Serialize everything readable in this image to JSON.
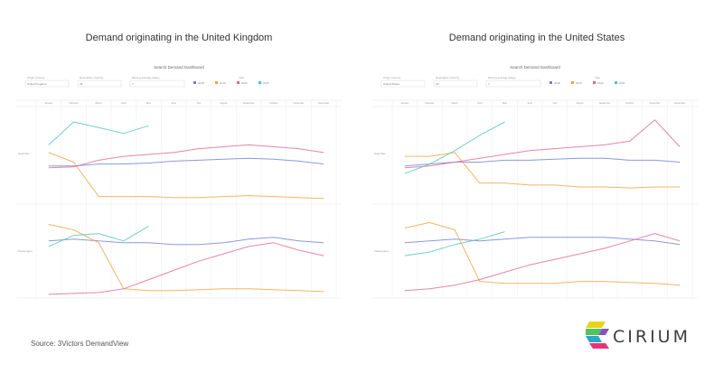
{
  "panels": [
    {
      "title": "Demand originating in the United Kingdom",
      "dashboard_title": "Search Demand Dashboard",
      "filters": [
        {
          "label": "Origin Country",
          "value": "United Kingdom"
        },
        {
          "label": "Destination Country",
          "value": "All"
        },
        {
          "label": "Moving average (days)",
          "value": "7"
        }
      ],
      "legend_title": "Year",
      "legend": [
        {
          "name": "2018",
          "color": "#6f7fd6"
        },
        {
          "name": "2019",
          "color": "#f0a23c"
        },
        {
          "name": "2020",
          "color": "#e0668e"
        },
        {
          "name": "2021",
          "color": "#4fc4b8"
        }
      ],
      "month_labels": [
        "January",
        "February",
        "March",
        "April",
        "May",
        "June",
        "July",
        "August",
        "September",
        "October",
        "November",
        "December"
      ],
      "row_labels": [
        "Searches",
        "Passengers"
      ]
    },
    {
      "title": "Demand originating in the United States",
      "dashboard_title": "Search Demand Dashboard",
      "filters": [
        {
          "label": "Origin Country",
          "value": "United States"
        },
        {
          "label": "Destination Country",
          "value": "All"
        },
        {
          "label": "Moving average (days)",
          "value": "7"
        }
      ],
      "legend_title": "Year",
      "legend": [
        {
          "name": "2018",
          "color": "#6f7fd6"
        },
        {
          "name": "2019",
          "color": "#f0a23c"
        },
        {
          "name": "2020",
          "color": "#e0668e"
        },
        {
          "name": "2021",
          "color": "#4fc4b8"
        }
      ],
      "month_labels": [
        "January",
        "February",
        "March",
        "April",
        "May",
        "June",
        "July",
        "August",
        "September",
        "October",
        "November",
        "December"
      ],
      "row_labels": [
        "Searches",
        "Passengers"
      ]
    }
  ],
  "source": "Source: 3Victors DemandView",
  "logo": {
    "text": "CIRIUM",
    "colors": [
      "#e8d21f",
      "#4fc45a",
      "#2aa7c9",
      "#e8337a",
      "#8a4fc4"
    ]
  },
  "chart_data": [
    {
      "type": "line",
      "title": "Demand originating in the United Kingdom",
      "xlabel": "",
      "ylabel": "",
      "categories": [
        "Jan",
        "Feb",
        "Mar",
        "Apr",
        "May",
        "Jun",
        "Jul",
        "Aug",
        "Sep",
        "Oct",
        "Nov",
        "Dec"
      ],
      "subplots": [
        {
          "name": "Searches",
          "ylim": [
            0,
            100
          ],
          "series": [
            {
              "name": "2018",
              "values": [
                38,
                38,
                40,
                40,
                41,
                43,
                44,
                45,
                46,
                45,
                43,
                40
              ]
            },
            {
              "name": "2019",
              "values": [
                52,
                42,
                6,
                6,
                6,
                5,
                5,
                6,
                7,
                6,
                5,
                4
              ]
            },
            {
              "name": "2020",
              "values": [
                36,
                37,
                44,
                48,
                50,
                52,
                56,
                58,
                60,
                58,
                56,
                52
              ]
            },
            {
              "name": "2021",
              "values": [
                60,
                84,
                78,
                72,
                80,
                null,
                null,
                null,
                null,
                null,
                null,
                null
              ]
            }
          ]
        },
        {
          "name": "Passengers",
          "ylim": [
            0,
            100
          ],
          "series": [
            {
              "name": "2018",
              "values": [
                62,
                64,
                62,
                60,
                60,
                58,
                58,
                60,
                64,
                66,
                62,
                60
              ]
            },
            {
              "name": "2019",
              "values": [
                80,
                74,
                60,
                10,
                8,
                8,
                9,
                10,
                10,
                9,
                8,
                7
              ]
            },
            {
              "name": "2020",
              "values": [
                4,
                5,
                6,
                10,
                20,
                30,
                40,
                48,
                56,
                60,
                52,
                46
              ]
            },
            {
              "name": "2021",
              "values": [
                56,
                68,
                70,
                62,
                78,
                null,
                null,
                null,
                null,
                null,
                null,
                null
              ]
            }
          ]
        }
      ]
    },
    {
      "type": "line",
      "title": "Demand originating in the United States",
      "xlabel": "",
      "ylabel": "",
      "categories": [
        "Jan",
        "Feb",
        "Mar",
        "Apr",
        "May",
        "Jun",
        "Jul",
        "Aug",
        "Sep",
        "Oct",
        "Nov",
        "Dec"
      ],
      "subplots": [
        {
          "name": "Searches",
          "ylim": [
            0,
            100
          ],
          "series": [
            {
              "name": "2018",
              "values": [
                38,
                40,
                42,
                42,
                44,
                44,
                45,
                46,
                46,
                44,
                44,
                42
              ]
            },
            {
              "name": "2019",
              "values": [
                48,
                48,
                52,
                20,
                20,
                18,
                18,
                16,
                16,
                15,
                16,
                16
              ]
            },
            {
              "name": "2020",
              "values": [
                36,
                38,
                42,
                46,
                50,
                54,
                56,
                58,
                60,
                64,
                86,
                58
              ]
            },
            {
              "name": "2021",
              "values": [
                30,
                40,
                54,
                70,
                84,
                null,
                null,
                null,
                null,
                null,
                null,
                null
              ]
            }
          ]
        },
        {
          "name": "Passengers",
          "ylim": [
            0,
            100
          ],
          "series": [
            {
              "name": "2018",
              "values": [
                60,
                62,
                64,
                62,
                64,
                66,
                66,
                66,
                66,
                64,
                62,
                58
              ]
            },
            {
              "name": "2019",
              "values": [
                76,
                82,
                74,
                18,
                16,
                16,
                16,
                18,
                18,
                17,
                16,
                14
              ]
            },
            {
              "name": "2020",
              "values": [
                8,
                10,
                14,
                20,
                28,
                36,
                42,
                48,
                54,
                62,
                70,
                62
              ]
            },
            {
              "name": "2021",
              "values": [
                46,
                50,
                58,
                64,
                72,
                null,
                null,
                null,
                null,
                null,
                null,
                null
              ]
            }
          ]
        }
      ]
    }
  ]
}
